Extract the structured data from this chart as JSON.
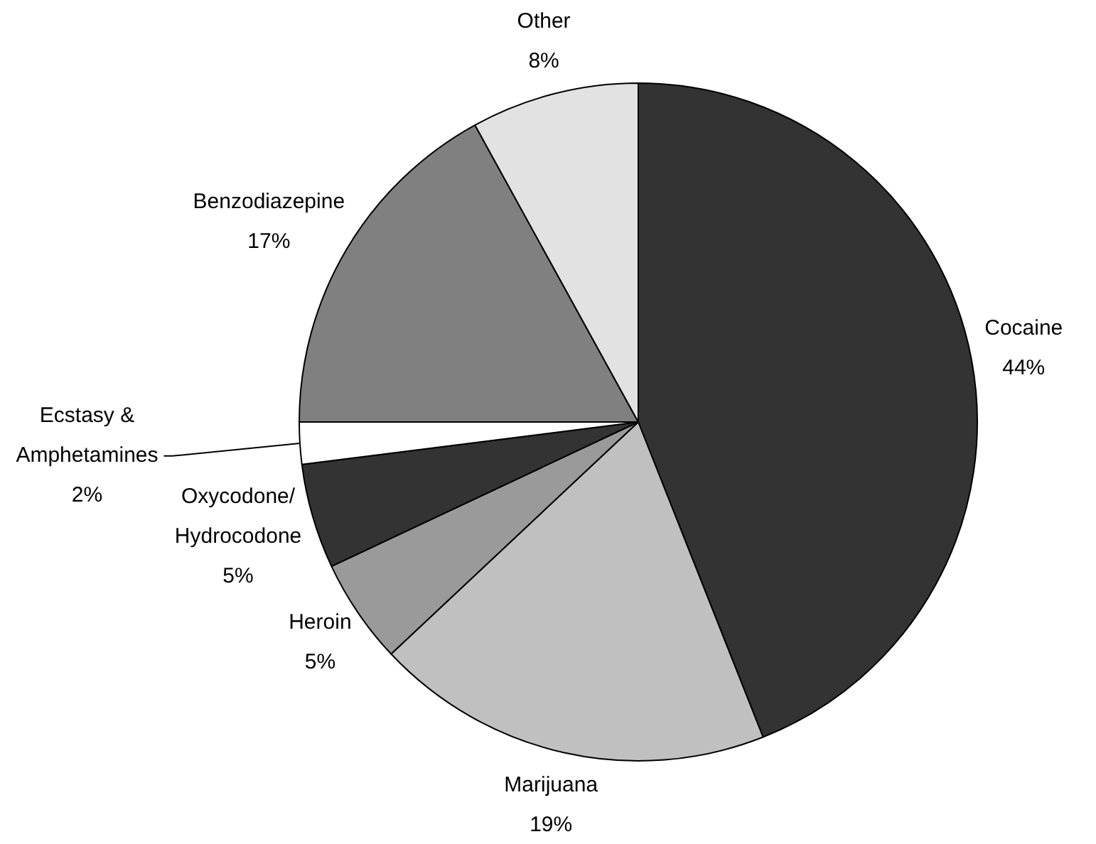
{
  "chart_data": {
    "type": "pie",
    "categories": [
      "Cocaine",
      "Marijuana",
      "Heroin",
      "Oxycodone/Hydrocodone",
      "Ecstasy & Amphetamines",
      "Benzodiazepine",
      "Other"
    ],
    "values": [
      44,
      19,
      5,
      5,
      2,
      17,
      8
    ],
    "value_labels": [
      "44%",
      "19%",
      "5%",
      "5%",
      "2%",
      "17%",
      "8%"
    ],
    "colors": [
      "#333333",
      "#c0c0c0",
      "#9a9a9a",
      "#333333",
      "#ffffff",
      "#808080",
      "#e2e2e2"
    ],
    "legend": false
  }
}
